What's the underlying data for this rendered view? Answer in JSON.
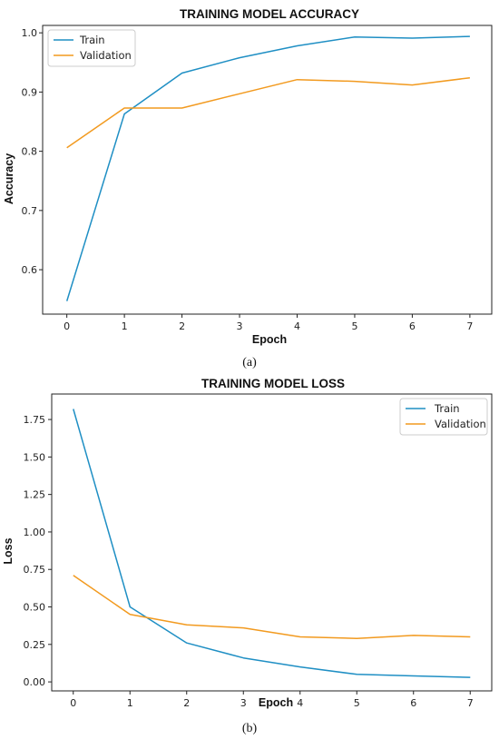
{
  "chart_data": [
    {
      "id": "a",
      "type": "line",
      "title": "TRAINING MODEL ACCURACY",
      "xlabel": "Epoch",
      "ylabel": "Accuracy",
      "caption": "(a)",
      "x": [
        0,
        1,
        2,
        3,
        4,
        5,
        6,
        7
      ],
      "xticks": [
        "0",
        "1",
        "2",
        "3",
        "4",
        "5",
        "6",
        "7"
      ],
      "yticks": [
        "0.6",
        "0.7",
        "0.8",
        "0.9",
        "1.0"
      ],
      "ytick_values": [
        0.6,
        0.7,
        0.8,
        0.9,
        1.0
      ],
      "xlim": [
        -0.42,
        7.38
      ],
      "ylim": [
        0.525,
        1.0125
      ],
      "legend_position": "top-left",
      "grid": false,
      "series": [
        {
          "name": "Train",
          "color": "#1f8fc4",
          "values": [
            0.547,
            0.863,
            0.932,
            0.958,
            0.978,
            0.993,
            0.991,
            0.994
          ]
        },
        {
          "name": "Validation",
          "color": "#f29a1f",
          "values": [
            0.806,
            0.873,
            0.873,
            0.897,
            0.921,
            0.918,
            0.912,
            0.924
          ]
        }
      ]
    },
    {
      "id": "b",
      "type": "line",
      "title": "TRAINING MODEL LOSS",
      "xlabel": "Epoch",
      "ylabel": "Loss",
      "caption": "(b)",
      "x": [
        0,
        1,
        2,
        3,
        4,
        5,
        6,
        7
      ],
      "xticks": [
        "0",
        "1",
        "2",
        "3",
        "4",
        "5",
        "6",
        "7"
      ],
      "yticks": [
        "0.00",
        "0.25",
        "0.50",
        "0.75",
        "1.00",
        "1.25",
        "1.50",
        "1.75"
      ],
      "ytick_values": [
        0,
        0.25,
        0.5,
        0.75,
        1.0,
        1.25,
        1.5,
        1.75
      ],
      "xlim": [
        -0.38,
        7.38
      ],
      "ylim": [
        -0.06,
        1.92
      ],
      "legend_position": "top-right",
      "grid": false,
      "series": [
        {
          "name": "Train",
          "color": "#1f8fc4",
          "values": [
            1.82,
            0.5,
            0.26,
            0.16,
            0.1,
            0.05,
            0.04,
            0.03
          ]
        },
        {
          "name": "Validation",
          "color": "#f29a1f",
          "values": [
            0.71,
            0.45,
            0.38,
            0.36,
            0.3,
            0.29,
            0.31,
            0.3
          ]
        }
      ]
    }
  ]
}
